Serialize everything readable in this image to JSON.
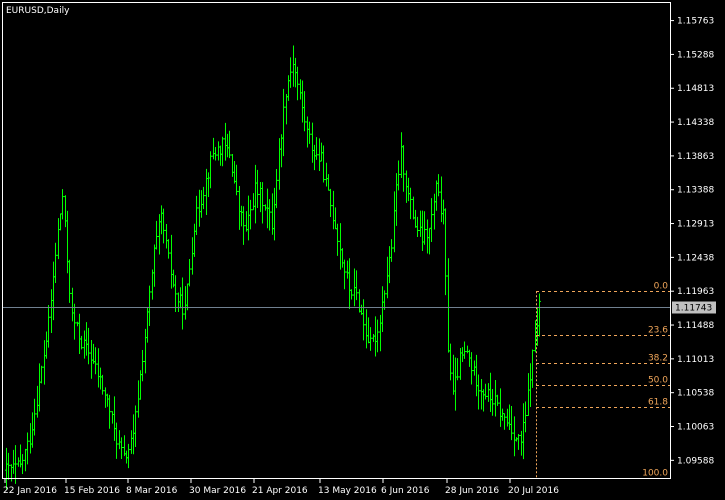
{
  "chart_data": {
    "type": "bar",
    "title": "EURUSD,Daily",
    "colors": {
      "background": "#000000",
      "frame": "#ffffff",
      "bar": "#00ff00",
      "current_price_line": "#708090",
      "fib": "#f0a65a"
    },
    "y_axis_ticks": [
      "1.15763",
      "1.15288",
      "1.14813",
      "1.14338",
      "1.13863",
      "1.13388",
      "1.12913",
      "1.12438",
      "1.11963",
      "1.11488",
      "1.11013",
      "1.10538",
      "1.10063",
      "1.09588"
    ],
    "x_axis_ticks": [
      "22 Jan 2016",
      "15 Feb 2016",
      "8 Mar 2016",
      "30 Mar 2016",
      "21 Apr 2016",
      "13 May 2016",
      "6 Jun 2016",
      "28 Jun 2016",
      "20 Jul 2016"
    ],
    "ylim": [
      1.0934,
      1.1601
    ],
    "current_price": "1.11743",
    "fibonacci": {
      "high": 1.11963,
      "low": 1.0934,
      "levels": [
        {
          "label": "0.0",
          "ratio": 0.0
        },
        {
          "label": "23.6",
          "ratio": 0.236
        },
        {
          "label": "38.2",
          "ratio": 0.382
        },
        {
          "label": "50.0",
          "ratio": 0.5
        },
        {
          "label": "61.8",
          "ratio": 0.618
        },
        {
          "label": "100.0",
          "ratio": 1.0
        }
      ]
    },
    "close_path": [
      [
        0,
        1.0945
      ],
      [
        6,
        1.095
      ],
      [
        10,
        1.099
      ],
      [
        14,
        1.1065
      ],
      [
        18,
        1.115
      ],
      [
        22,
        1.128
      ],
      [
        24,
        1.133
      ],
      [
        26,
        1.124
      ],
      [
        28,
        1.116
      ],
      [
        32,
        1.1125
      ],
      [
        36,
        1.1105
      ],
      [
        40,
        1.107
      ],
      [
        44,
        1.103
      ],
      [
        46,
        1.1
      ],
      [
        50,
        1.096
      ],
      [
        54,
        1.099
      ],
      [
        56,
        1.105
      ],
      [
        60,
        1.116
      ],
      [
        63,
        1.125
      ],
      [
        66,
        1.13
      ],
      [
        69,
        1.124
      ],
      [
        72,
        1.119
      ],
      [
        76,
        1.117
      ],
      [
        80,
        1.129
      ],
      [
        84,
        1.134
      ],
      [
        88,
        1.139
      ],
      [
        92,
        1.14
      ],
      [
        95,
        1.139
      ],
      [
        99,
        1.131
      ],
      [
        102,
        1.128
      ],
      [
        106,
        1.134
      ],
      [
        110,
        1.132
      ],
      [
        113,
        1.129
      ],
      [
        116,
        1.139
      ],
      [
        119,
        1.148
      ],
      [
        122,
        1.152
      ],
      [
        125,
        1.147
      ],
      [
        128,
        1.142
      ],
      [
        131,
        1.139
      ],
      [
        134,
        1.138
      ],
      [
        137,
        1.133
      ],
      [
        140,
        1.129
      ],
      [
        143,
        1.124
      ],
      [
        146,
        1.12
      ],
      [
        149,
        1.119
      ],
      [
        152,
        1.115
      ],
      [
        155,
        1.112
      ],
      [
        158,
        1.114
      ],
      [
        161,
        1.12
      ],
      [
        164,
        1.126
      ],
      [
        166,
        1.134
      ],
      [
        168,
        1.139
      ],
      [
        171,
        1.133
      ],
      [
        174,
        1.129
      ],
      [
        177,
        1.127
      ],
      [
        180,
        1.128
      ],
      [
        183,
        1.134
      ],
      [
        186,
        1.13
      ],
      [
        188,
        1.112
      ],
      [
        190,
        1.105
      ],
      [
        193,
        1.11
      ],
      [
        196,
        1.111
      ],
      [
        199,
        1.108
      ],
      [
        202,
        1.106
      ],
      [
        205,
        1.105
      ],
      [
        208,
        1.104
      ],
      [
        211,
        1.102
      ],
      [
        214,
        1.101
      ],
      [
        217,
        1.099
      ],
      [
        219,
        1.0985
      ],
      [
        221,
        1.102
      ],
      [
        223,
        1.108
      ],
      [
        225,
        1.113
      ],
      [
        227,
        1.1174
      ]
    ],
    "candle_count": 228
  }
}
